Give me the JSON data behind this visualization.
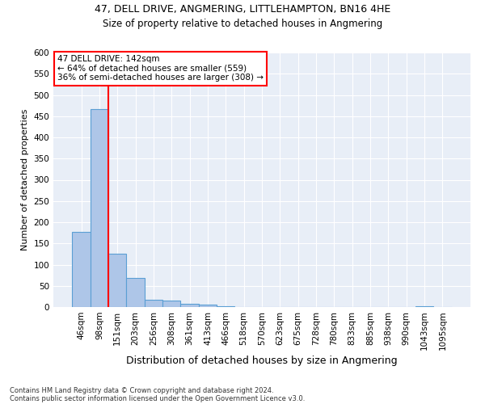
{
  "title": "47, DELL DRIVE, ANGMERING, LITTLEHAMPTON, BN16 4HE",
  "subtitle": "Size of property relative to detached houses in Angmering",
  "xlabel": "Distribution of detached houses by size in Angmering",
  "ylabel": "Number of detached properties",
  "footer_line1": "Contains HM Land Registry data © Crown copyright and database right 2024.",
  "footer_line2": "Contains public sector information licensed under the Open Government Licence v3.0.",
  "bin_labels": [
    "46sqm",
    "98sqm",
    "151sqm",
    "203sqm",
    "256sqm",
    "308sqm",
    "361sqm",
    "413sqm",
    "466sqm",
    "518sqm",
    "570sqm",
    "623sqm",
    "675sqm",
    "728sqm",
    "780sqm",
    "833sqm",
    "885sqm",
    "938sqm",
    "990sqm",
    "1043sqm",
    "1095sqm"
  ],
  "bar_heights": [
    178,
    467,
    125,
    68,
    18,
    16,
    8,
    5,
    2,
    0,
    0,
    0,
    0,
    0,
    0,
    0,
    0,
    0,
    0,
    2,
    0
  ],
  "bar_color": "#aec6e8",
  "bar_edge_color": "#5a9fd4",
  "vline_bin_index": 2,
  "vline_color": "red",
  "annotation_text": "47 DELL DRIVE: 142sqm\n← 64% of detached houses are smaller (559)\n36% of semi-detached houses are larger (308) →",
  "annotation_box_color": "white",
  "annotation_box_edge_color": "red",
  "ylim": [
    0,
    600
  ],
  "yticks": [
    0,
    50,
    100,
    150,
    200,
    250,
    300,
    350,
    400,
    450,
    500,
    550,
    600
  ],
  "background_color": "#e8eef7",
  "title_fontsize": 9,
  "subtitle_fontsize": 8.5,
  "xlabel_fontsize": 9,
  "ylabel_fontsize": 8,
  "tick_fontsize": 7.5
}
